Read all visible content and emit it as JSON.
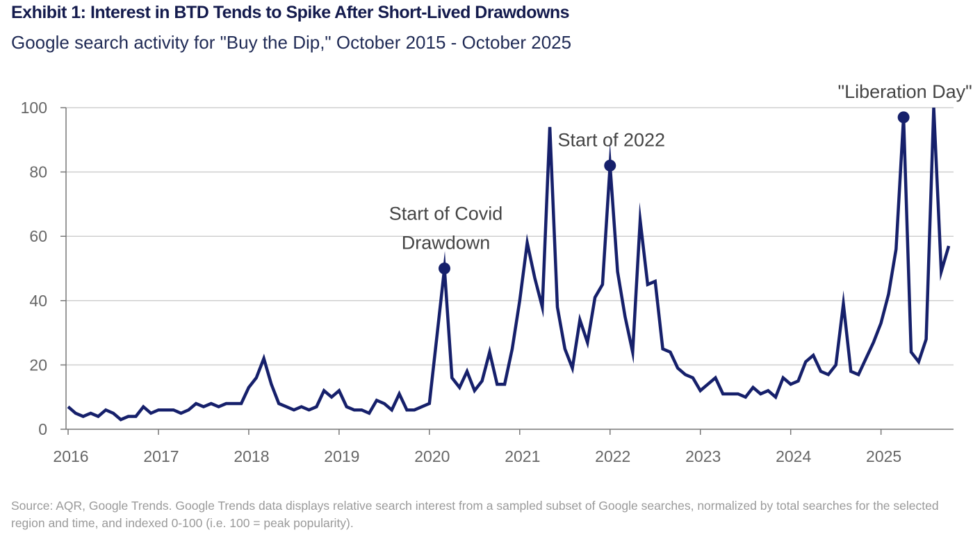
{
  "title": "Exhibit 1: Interest in BTD Tends to Spike After Short-Lived Drawdowns",
  "subtitle": "Google search activity for \"Buy the Dip,\" October 2015 - October 2025",
  "footnote": "Source: AQR, Google Trends. Google Trends data displays relative search interest from a sampled subset of Google searches, normalized by total searches for the selected region and time, and indexed 0-100 (i.e. 100 = peak popularity).",
  "chart_data": {
    "type": "line",
    "title": "Exhibit 1: Interest in BTD Tends to Spike After Short-Lived Drawdowns",
    "xlabel": "",
    "ylabel": "",
    "ylim": [
      0,
      100
    ],
    "yticks": [
      "0",
      "20",
      "40",
      "60",
      "80",
      "100"
    ],
    "xticks": [
      "2016",
      "2017",
      "2018",
      "2019",
      "2020",
      "2021",
      "2022",
      "2023",
      "2024",
      "2025"
    ],
    "grid": "horizontal",
    "line_color": "#16206b",
    "x_start": "2016-01",
    "x_frequency": "monthly",
    "values": [
      7,
      5,
      4,
      5,
      4,
      6,
      5,
      3,
      4,
      4,
      7,
      5,
      6,
      6,
      6,
      5,
      6,
      8,
      7,
      8,
      7,
      8,
      8,
      8,
      13,
      16,
      22,
      14,
      8,
      7,
      6,
      7,
      6,
      7,
      12,
      10,
      12,
      7,
      6,
      6,
      5,
      9,
      8,
      6,
      11,
      6,
      6,
      7,
      8,
      29,
      50,
      16,
      13,
      18,
      12,
      15,
      24,
      14,
      14,
      25,
      40,
      58,
      47,
      38,
      94,
      38,
      25,
      19,
      34,
      27,
      41,
      45,
      82,
      49,
      35,
      24,
      65,
      45,
      46,
      25,
      24,
      19,
      17,
      16,
      12,
      14,
      16,
      11,
      11,
      11,
      10,
      13,
      11,
      12,
      10,
      16,
      14,
      15,
      21,
      23,
      18,
      17,
      20,
      39,
      18,
      17,
      22,
      27,
      33,
      42,
      56,
      97,
      24,
      21,
      28,
      100,
      49,
      57
    ],
    "annotations": [
      {
        "lines": [
          "Start of Covid",
          "Drawdown"
        ],
        "date": "2020-03",
        "value": 50
      },
      {
        "lines": [
          "Start of 2022"
        ],
        "date": "2022-01",
        "value": 82
      },
      {
        "lines": [
          "\"Liberation Day\""
        ],
        "date": "2025-04",
        "value": 97
      }
    ]
  }
}
